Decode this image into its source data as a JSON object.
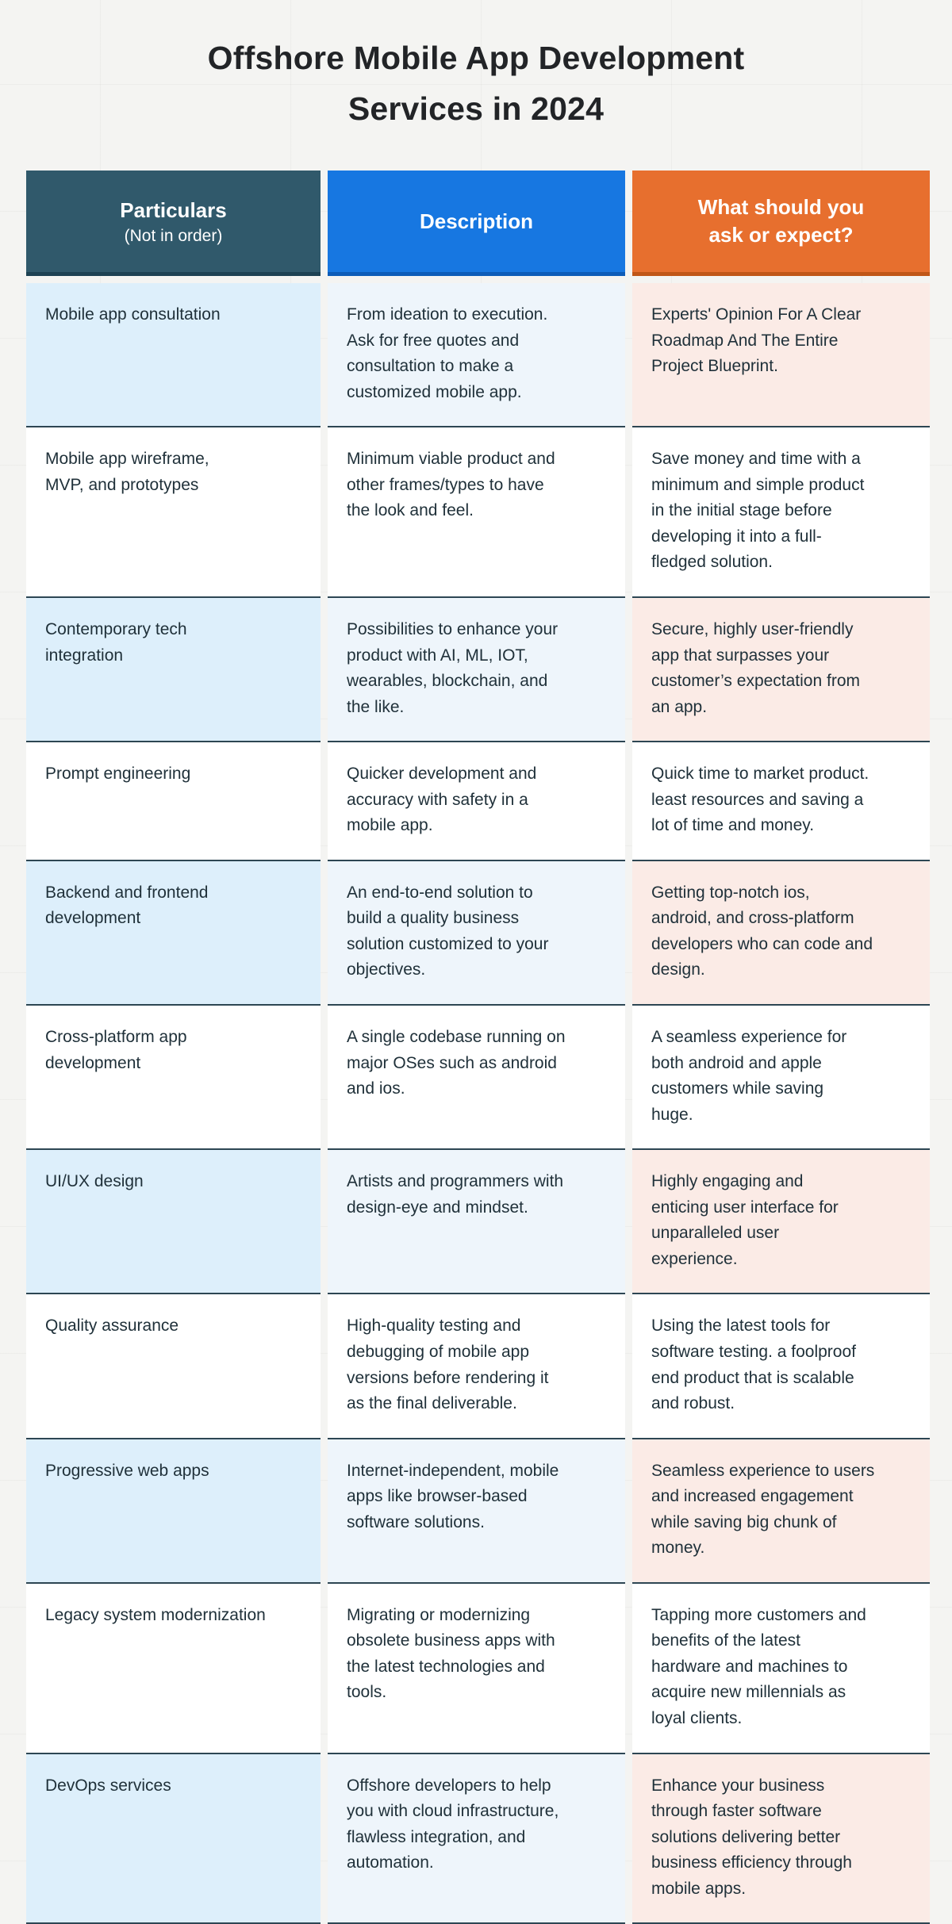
{
  "title": "Offshore Mobile App Development\nServices in 2024",
  "colors": {
    "page_background": "#f4f4f2",
    "header_particulars": "#30596b",
    "header_description": "#1777e1",
    "header_expectation": "#e76f2e",
    "tint_particulars": "#ddeffb",
    "tint_description": "#eef5fb",
    "tint_expectation": "#fbebe6",
    "row_border": "#2d4653",
    "header_text": "#ffffff",
    "body_text": "#20313a"
  },
  "table": {
    "headers": {
      "particulars": {
        "title": "Particulars",
        "subtitle": "(Not in order)"
      },
      "description": {
        "title": "Description"
      },
      "expectation": {
        "title": "What should you\nask or expect?"
      }
    },
    "rows": [
      {
        "particulars": "Mobile app consultation",
        "description": "From ideation to execution.\nAsk for free quotes and\nconsultation to make a\ncustomized mobile app.",
        "expectation": "Experts' Opinion For A Clear\nRoadmap And The Entire\nProject Blueprint."
      },
      {
        "particulars": "Mobile app wireframe,\nMVP, and prototypes",
        "description": "Minimum viable product and\nother frames/types to have\nthe look and feel.",
        "expectation": "Save money and time with a\nminimum and simple product\nin the initial stage before\ndeveloping it into a full-\nfledged solution."
      },
      {
        "particulars": "Contemporary tech\nintegration",
        "description": "Possibilities to enhance your\nproduct with AI, ML, IOT,\nwearables, blockchain, and\nthe like.",
        "expectation": "Secure, highly user-friendly\napp that surpasses your\ncustomer’s expectation from\nan app."
      },
      {
        "particulars": "Prompt engineering",
        "description": "Quicker development and\naccuracy with safety in a\nmobile app.",
        "expectation": "Quick time to market product.\nleast resources and saving a\nlot of time and money."
      },
      {
        "particulars": "Backend and frontend\ndevelopment",
        "description": "An end-to-end solution to\nbuild a quality business\nsolution customized to your\nobjectives.",
        "expectation": "Getting top-notch ios,\nandroid, and cross-platform\ndevelopers who can code and\ndesign."
      },
      {
        "particulars": "Cross-platform app\ndevelopment",
        "description": "A single codebase running on\nmajor OSes such as android\nand ios.",
        "expectation": "A seamless experience for\nboth android and apple\ncustomers while saving\nhuge."
      },
      {
        "particulars": "UI/UX design",
        "description": "Artists and programmers with\ndesign-eye and mindset.",
        "expectation": "Highly engaging and\nenticing user interface for\nunparalleled user\nexperience."
      },
      {
        "particulars": "Quality assurance",
        "description": "High-quality testing and\ndebugging of mobile app\nversions before rendering it\nas the final deliverable.",
        "expectation": "Using the latest tools for\nsoftware testing. a foolproof\nend product that is scalable\nand robust."
      },
      {
        "particulars": "Progressive web apps",
        "description": "Internet-independent, mobile\napps like browser-based\nsoftware solutions.",
        "expectation": "Seamless experience to users\nand increased engagement\nwhile saving big chunk of\nmoney."
      },
      {
        "particulars": "Legacy system modernization",
        "description": "Migrating or modernizing\nobsolete business apps with\nthe latest technologies and\ntools.",
        "expectation": "Tapping more customers and\nbenefits of the latest\nhardware and machines to\nacquire new millennials as\nloyal clients."
      },
      {
        "particulars": "DevOps services",
        "description": "Offshore developers to help\nyou with cloud infrastructure,\nflawless integration, and\nautomation.",
        "expectation": "Enhance your business\nthrough faster software\nsolutions delivering better\nbusiness efficiency through\nmobile apps."
      }
    ]
  }
}
